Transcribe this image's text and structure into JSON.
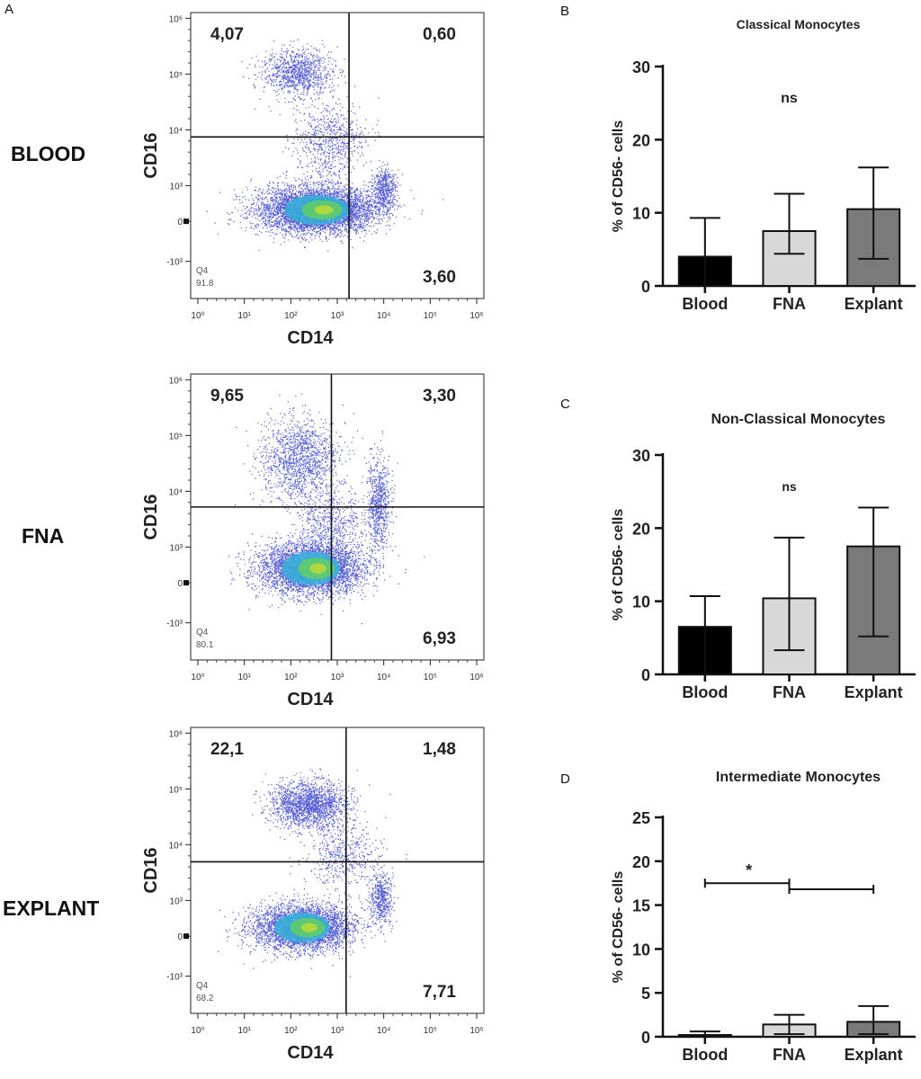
{
  "figure": {
    "panel_labels": [
      "A",
      "B",
      "C",
      "D"
    ],
    "row_labels": [
      "BLOOD",
      "FNA",
      "EXPLANT"
    ]
  },
  "flow_axes": {
    "x_label": "CD14",
    "y_label": "CD16",
    "x_ticks": [
      "10⁰",
      "10¹",
      "10²",
      "10³",
      "10⁴",
      "10⁵",
      "10⁶"
    ],
    "y_ticks": [
      "10⁶",
      "10⁵",
      "10⁴",
      "10³",
      "0",
      "-10³"
    ],
    "gate_name": "Q4"
  },
  "flow_plots": [
    {
      "sample": "BLOOD",
      "q1": "4,07",
      "q2": "0,60",
      "q3": "3,60",
      "q4": "91.8"
    },
    {
      "sample": "FNA",
      "q1": "9,65",
      "q2": "3,30",
      "q3": "6,93",
      "q4": "80.1"
    },
    {
      "sample": "EXPLANT",
      "q1": "22,1",
      "q2": "1,48",
      "q3": "7,71",
      "q4": "68.2"
    }
  ],
  "chart_data": [
    {
      "type": "bar",
      "title": "Classical Monocytes",
      "ylabel": "% of CD56- cells",
      "categories": [
        "Blood",
        "FNA",
        "Explant"
      ],
      "values": [
        4.0,
        7.5,
        10.5
      ],
      "error_upper": [
        9.3,
        12.6,
        16.2
      ],
      "error_lower": [
        0,
        4.4,
        3.7
      ],
      "colors": [
        "#000000",
        "#d8d8d8",
        "#7a7a7a"
      ],
      "ylim": [
        0,
        30
      ],
      "yticks": [
        0,
        10,
        20,
        30
      ],
      "annotation": "ns"
    },
    {
      "type": "bar",
      "title": "Non-Classical Monocytes",
      "ylabel": "% of CD56- cells",
      "categories": [
        "Blood",
        "FNA",
        "Explant"
      ],
      "values": [
        6.5,
        10.4,
        17.5
      ],
      "error_upper": [
        10.7,
        18.7,
        22.8
      ],
      "error_lower": [
        0,
        3.3,
        5.2
      ],
      "colors": [
        "#000000",
        "#d8d8d8",
        "#7a7a7a"
      ],
      "ylim": [
        0,
        30
      ],
      "yticks": [
        0,
        10,
        20,
        30
      ],
      "annotation": "ns"
    },
    {
      "type": "bar",
      "title": "Intermediate Monocytes",
      "ylabel": "% of CD56- cells",
      "categories": [
        "Blood",
        "FNA",
        "Explant"
      ],
      "values": [
        0.2,
        1.4,
        1.7
      ],
      "error_upper": [
        0.6,
        2.5,
        3.5
      ],
      "error_lower": [
        0,
        0.3,
        0.3
      ],
      "colors": [
        "#000000",
        "#d8d8d8",
        "#7a7a7a"
      ],
      "ylim": [
        0,
        25
      ],
      "yticks": [
        0,
        5,
        10,
        15,
        20,
        25
      ],
      "annotation": "*",
      "significance_brackets": [
        {
          "from": "Blood",
          "to": "FNA",
          "level": 17.5
        },
        {
          "from": "FNA",
          "to": "Explant",
          "level": 16.8
        }
      ]
    }
  ]
}
